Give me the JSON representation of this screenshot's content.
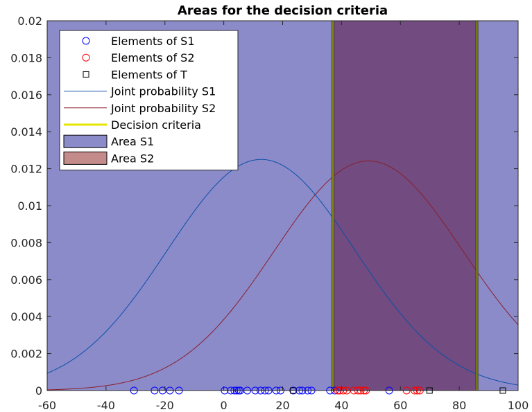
{
  "chart_data": {
    "type": "area",
    "title": "Areas for the decision criteria",
    "xlabel": "",
    "ylabel": "",
    "xlim": [
      -60,
      100
    ],
    "ylim": [
      0,
      0.02
    ],
    "x_ticks": [
      -60,
      -40,
      -20,
      0,
      20,
      40,
      60,
      80,
      100
    ],
    "y_ticks": [
      0,
      0.002,
      0.004,
      0.006,
      0.008,
      0.01,
      0.012,
      0.014,
      0.016,
      0.018,
      0.02
    ],
    "x_tick_labels": [
      "-60",
      "-40",
      "-20",
      "0",
      "20",
      "40",
      "60",
      "80",
      "100"
    ],
    "y_tick_labels": [
      "0",
      "0.002",
      "0.004",
      "0.006",
      "0.008",
      "0.01",
      "0.012",
      "0.014",
      "0.016",
      "0.018",
      "0.02"
    ],
    "grid": false,
    "legend_position": "top-left",
    "colors": {
      "s1_points": "#0000ff",
      "s2_points": "#ff0000",
      "t_points": "#000000",
      "s1_curve": "#0b4fa8",
      "s2_curve": "#8a1e2a",
      "criteria": "#e5e600",
      "area_s1": "#8b8bc9",
      "area_s2": "#c48b8b",
      "overlap": "#724b80"
    },
    "legend": [
      {
        "label": "Elements of S1",
        "marker": "circle",
        "color": "#0000ff"
      },
      {
        "label": "Elements of S2",
        "marker": "circle",
        "color": "#ff0000"
      },
      {
        "label": "Elements of T",
        "marker": "square",
        "color": "#000000"
      },
      {
        "label": "Joint probability S1",
        "marker": "line",
        "color": "#0b4fa8"
      },
      {
        "label": "Joint probability S2",
        "marker": "line",
        "color": "#8a1e2a"
      },
      {
        "label": "Decision criteria",
        "marker": "thickline",
        "color": "#e5e600"
      },
      {
        "label": "Area S1",
        "marker": "patch",
        "color": "#8b8bc9"
      },
      {
        "label": "Area S2",
        "marker": "patch",
        "color": "#c48b8b"
      }
    ],
    "series": [
      {
        "name": "Joint probability S1",
        "kind": "gaussian",
        "mean": 12.7,
        "peak": 0.0125
      },
      {
        "name": "Joint probability S2",
        "kind": "gaussian",
        "mean": 49.2,
        "peak": 0.01242
      }
    ],
    "decision_criteria": [
      37.1,
      86.0
    ],
    "areas": [
      {
        "name": "Area S1",
        "x_range": [
          -60,
          100
        ]
      },
      {
        "name": "Area S2",
        "x_range": [
          37.1,
          86.0
        ]
      }
    ],
    "elements_s1": [
      -30.5,
      -23.5,
      -20.8,
      -18.3,
      -15.2,
      0.3,
      2.4,
      3.6,
      4.4,
      5.1,
      5.6,
      8.0,
      10.7,
      12.5,
      14.0,
      15.2,
      17.8,
      19.3,
      23.6,
      25.7,
      26.7,
      28.5,
      29.8,
      36.1,
      37.7,
      56.2
    ],
    "elements_s2": [
      38.7,
      39.4,
      40.6,
      41.8,
      44.2,
      45.6,
      46.5,
      47.6,
      48.3,
      62.1,
      64.8,
      65.7,
      66.6
    ],
    "elements_t": [
      23.6,
      69.9,
      94.8
    ]
  }
}
